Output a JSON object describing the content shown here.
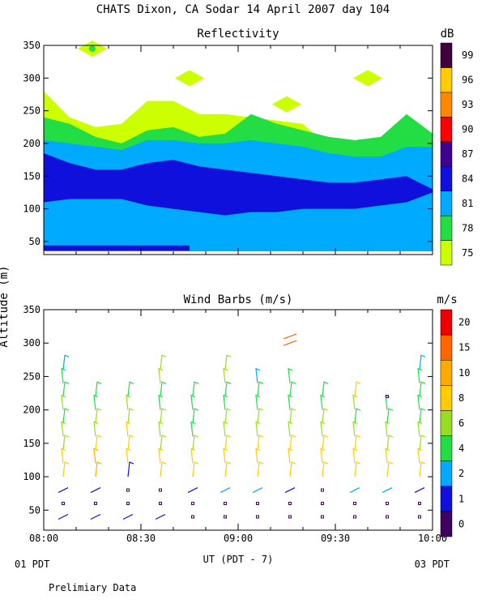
{
  "figure_title": "CHATS Dixon, CA  Sodar  14 April 2007  day 104",
  "y_axis_label": "Altitude (m)",
  "x_axis_label": "UT  (PDT - 7)",
  "x_left_note": "01 PDT",
  "x_right_note": "03 PDT",
  "footer_note": "Prelimiary Data",
  "chart_data": [
    {
      "type": "heatmap",
      "title": "Reflectivity",
      "xlim": [
        "08:00",
        "10:00"
      ],
      "ylim": [
        30,
        350
      ],
      "yticks": [
        50,
        100,
        150,
        200,
        250,
        300,
        350
      ],
      "xticks": [
        "08:00",
        "08:30",
        "09:00",
        "09:30",
        "10:00"
      ],
      "colorbar": {
        "unit": "dB",
        "ticks": [
          75,
          78,
          81,
          84,
          87,
          90,
          93,
          96,
          99
        ],
        "colors": [
          "#ccff00",
          "#22dd44",
          "#00aaff",
          "#1010dd",
          "#400090",
          "#ff0000",
          "#ff8800",
          "#ffcc00",
          "#400040"
        ]
      },
      "layers": [
        {
          "level": 75,
          "color": "#ccff00",
          "top": [
            280,
            240,
            225,
            230,
            265,
            265,
            245,
            245,
            240,
            235,
            230,
            195,
            190,
            195,
            230,
            210
          ],
          "bottom": [
            35,
            35,
            35,
            35,
            35,
            35,
            35,
            35,
            35,
            35,
            35,
            35,
            35,
            35,
            35,
            35
          ]
        },
        {
          "level": 78,
          "color": "#22dd44",
          "top": [
            240,
            230,
            210,
            200,
            220,
            225,
            210,
            215,
            245,
            230,
            220,
            210,
            205,
            210,
            245,
            215
          ],
          "bottom": [
            40,
            40,
            40,
            40,
            40,
            40,
            40,
            40,
            40,
            40,
            40,
            40,
            40,
            40,
            40,
            40
          ]
        },
        {
          "level": 81,
          "color": "#00aaff",
          "top": [
            205,
            200,
            195,
            190,
            205,
            205,
            200,
            200,
            205,
            200,
            195,
            185,
            180,
            180,
            195,
            195
          ],
          "bottom": [
            35,
            35,
            35,
            35,
            35,
            35,
            35,
            35,
            35,
            35,
            35,
            35,
            35,
            35,
            35,
            35
          ]
        },
        {
          "level": 84,
          "color": "#1010dd",
          "top": [
            185,
            170,
            160,
            160,
            170,
            175,
            165,
            160,
            155,
            150,
            145,
            140,
            140,
            145,
            150,
            130
          ],
          "bottom": [
            110,
            115,
            115,
            115,
            105,
            100,
            95,
            90,
            95,
            95,
            100,
            100,
            100,
            105,
            110,
            125
          ]
        }
      ],
      "low_layer": {
        "level": 84,
        "altitude_m": 40,
        "start": "08:00",
        "end": "08:45"
      },
      "high_patches": [
        {
          "level": 75,
          "center_time": "08:15",
          "altitude_m": 345
        },
        {
          "level": 75,
          "center_time": "08:45",
          "altitude_m": 300
        },
        {
          "level": 75,
          "center_time": "09:15",
          "altitude_m": 260
        },
        {
          "level": 75,
          "center_time": "09:40",
          "altitude_m": 300
        }
      ]
    },
    {
      "type": "wind_barbs",
      "title": "Wind Barbs (m/s)",
      "xlim": [
        "08:00",
        "10:00"
      ],
      "ylim": [
        20,
        350
      ],
      "yticks": [
        50,
        100,
        150,
        200,
        250,
        300,
        350
      ],
      "xticks": [
        "08:00",
        "08:30",
        "09:00",
        "09:30",
        "10:00"
      ],
      "colorbar": {
        "unit": "m/s",
        "ticks": [
          0,
          1,
          2,
          4,
          6,
          8,
          10,
          15,
          20
        ],
        "colors": [
          "#400060",
          "#1010dd",
          "#00aaff",
          "#22dd44",
          "#99dd22",
          "#ffcc00",
          "#ffaa00",
          "#ff6600",
          "#ee0000"
        ]
      },
      "times_min": [
        0,
        10,
        20,
        30,
        40,
        50,
        60,
        70,
        80,
        90,
        100,
        110,
        120
      ],
      "profiles": [
        {
          "t": 6,
          "vals": [
            [
              40,
              1
            ],
            [
              60,
              0
            ],
            [
              80,
              1
            ],
            [
              100,
              8
            ],
            [
              120,
              8
            ],
            [
              140,
              6
            ],
            [
              160,
              6
            ],
            [
              180,
              4
            ],
            [
              200,
              6
            ],
            [
              220,
              4
            ],
            [
              240,
              4
            ],
            [
              260,
              2
            ]
          ]
        },
        {
          "t": 16,
          "vals": [
            [
              40,
              1
            ],
            [
              60,
              0
            ],
            [
              80,
              1
            ],
            [
              100,
              10
            ],
            [
              120,
              10
            ],
            [
              140,
              8
            ],
            [
              160,
              6
            ],
            [
              180,
              6
            ],
            [
              200,
              4
            ],
            [
              220,
              4
            ]
          ]
        },
        {
          "t": 26,
          "vals": [
            [
              40,
              1
            ],
            [
              60,
              0
            ],
            [
              80,
              0
            ],
            [
              100,
              1
            ],
            [
              120,
              8
            ],
            [
              140,
              8
            ],
            [
              160,
              8
            ],
            [
              180,
              6
            ],
            [
              200,
              6
            ],
            [
              220,
              4
            ]
          ]
        },
        {
          "t": 36,
          "vals": [
            [
              40,
              1
            ],
            [
              60,
              0
            ],
            [
              80,
              0
            ],
            [
              100,
              8
            ],
            [
              120,
              8
            ],
            [
              140,
              6
            ],
            [
              160,
              6
            ],
            [
              180,
              6
            ],
            [
              200,
              4
            ],
            [
              220,
              4
            ],
            [
              240,
              6
            ],
            [
              260,
              6
            ]
          ]
        },
        {
          "t": 46,
          "vals": [
            [
              40,
              0
            ],
            [
              60,
              0
            ],
            [
              80,
              1
            ],
            [
              100,
              8
            ],
            [
              120,
              8
            ],
            [
              140,
              6
            ],
            [
              160,
              4
            ],
            [
              180,
              4
            ],
            [
              200,
              4
            ],
            [
              220,
              4
            ]
          ]
        },
        {
          "t": 56,
          "vals": [
            [
              40,
              0
            ],
            [
              60,
              0
            ],
            [
              80,
              2
            ],
            [
              100,
              8
            ],
            [
              120,
              8
            ],
            [
              140,
              8
            ],
            [
              160,
              6
            ],
            [
              180,
              6
            ],
            [
              200,
              4
            ],
            [
              220,
              4
            ],
            [
              240,
              6
            ],
            [
              260,
              6
            ]
          ]
        },
        {
          "t": 66,
          "vals": [
            [
              40,
              0
            ],
            [
              60,
              0
            ],
            [
              80,
              2
            ],
            [
              100,
              8
            ],
            [
              120,
              8
            ],
            [
              140,
              8
            ],
            [
              160,
              6
            ],
            [
              180,
              6
            ],
            [
              200,
              4
            ],
            [
              220,
              4
            ],
            [
              240,
              2
            ]
          ]
        },
        {
          "t": 76,
          "vals": [
            [
              40,
              0
            ],
            [
              60,
              0
            ],
            [
              80,
              1
            ],
            [
              100,
              8
            ],
            [
              120,
              8
            ],
            [
              140,
              8
            ],
            [
              160,
              6
            ],
            [
              180,
              6
            ],
            [
              200,
              4
            ],
            [
              220,
              4
            ],
            [
              240,
              4
            ],
            [
              300,
              15
            ],
            [
              310,
              15
            ]
          ]
        },
        {
          "t": 86,
          "vals": [
            [
              40,
              0
            ],
            [
              60,
              0
            ],
            [
              80,
              0
            ],
            [
              100,
              8
            ],
            [
              120,
              8
            ],
            [
              140,
              8
            ],
            [
              160,
              6
            ],
            [
              180,
              6
            ],
            [
              200,
              4
            ],
            [
              220,
              4
            ]
          ]
        },
        {
          "t": 96,
          "vals": [
            [
              40,
              0
            ],
            [
              60,
              0
            ],
            [
              80,
              2
            ],
            [
              100,
              8
            ],
            [
              120,
              8
            ],
            [
              140,
              8
            ],
            [
              160,
              6
            ],
            [
              180,
              4
            ],
            [
              200,
              6
            ],
            [
              220,
              8
            ]
          ]
        },
        {
          "t": 106,
          "vals": [
            [
              40,
              0
            ],
            [
              60,
              0
            ],
            [
              80,
              2
            ],
            [
              100,
              8
            ],
            [
              120,
              8
            ],
            [
              140,
              6
            ],
            [
              160,
              6
            ],
            [
              180,
              4
            ],
            [
              200,
              4
            ],
            [
              220,
              0
            ]
          ]
        },
        {
          "t": 116,
          "vals": [
            [
              40,
              0
            ],
            [
              60,
              0
            ],
            [
              80,
              1
            ],
            [
              100,
              8
            ],
            [
              120,
              8
            ],
            [
              140,
              6
            ],
            [
              160,
              6
            ],
            [
              180,
              4
            ],
            [
              200,
              4
            ],
            [
              220,
              4
            ],
            [
              240,
              4
            ],
            [
              260,
              2
            ]
          ]
        }
      ]
    }
  ]
}
